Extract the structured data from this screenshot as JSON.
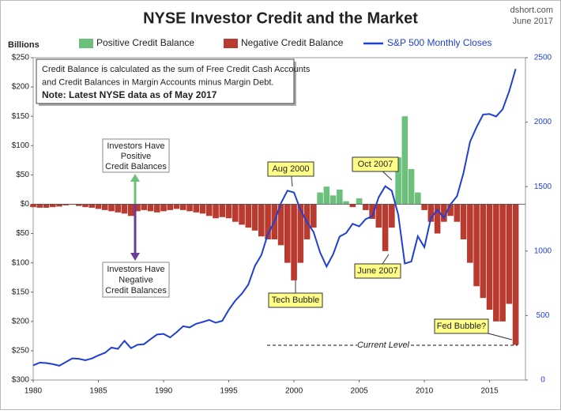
{
  "chart_data": {
    "type": "bar",
    "title": "NYSE Investor Credit and the Market",
    "source": [
      "dshort.com",
      "June 2017"
    ],
    "ylabel": "Billions",
    "xlim": [
      1980,
      2017.75
    ],
    "xticks": [
      1980,
      1985,
      1990,
      1995,
      2000,
      2005,
      2010,
      2015
    ],
    "ylim": [
      -300,
      250
    ],
    "yticks": [
      {
        "value": -300,
        "label": "$300"
      },
      {
        "value": -250,
        "label": "$250"
      },
      {
        "value": -200,
        "label": "$200"
      },
      {
        "value": -150,
        "label": "$150"
      },
      {
        "value": -100,
        "label": "$100"
      },
      {
        "value": -50,
        "label": "$50"
      },
      {
        "value": 0,
        "label": "$0"
      },
      {
        "value": 50,
        "label": "$50"
      },
      {
        "value": 100,
        "label": "$100"
      },
      {
        "value": 150,
        "label": "$150"
      },
      {
        "value": 200,
        "label": "$200"
      },
      {
        "value": 250,
        "label": "$250"
      }
    ],
    "y2lim": [
      0,
      2500
    ],
    "y2ticks": [
      0,
      500,
      1000,
      1500,
      2000,
      2500
    ],
    "x": [
      1980,
      1980.5,
      1981,
      1981.5,
      1982,
      1982.5,
      1983,
      1983.5,
      1984,
      1984.5,
      1985,
      1985.5,
      1986,
      1986.5,
      1987,
      1987.5,
      1988,
      1988.5,
      1989,
      1989.5,
      1990,
      1990.5,
      1991,
      1991.5,
      1992,
      1992.5,
      1993,
      1993.5,
      1994,
      1994.5,
      1995,
      1995.5,
      1996,
      1996.5,
      1997,
      1997.5,
      1998,
      1998.5,
      1999,
      1999.5,
      2000,
      2000.5,
      2001,
      2001.5,
      2002,
      2002.5,
      2003,
      2003.5,
      2004,
      2004.5,
      2005,
      2005.5,
      2006,
      2006.5,
      2007,
      2007.5,
      2008,
      2008.5,
      2009,
      2009.5,
      2010,
      2010.5,
      2011,
      2011.5,
      2012,
      2012.5,
      2013,
      2013.5,
      2014,
      2014.5,
      2015,
      2015.5,
      2016,
      2016.5,
      2017
    ],
    "series": [
      {
        "name": "Positive Credit Balance",
        "color": "#6cc07c",
        "values": [
          null,
          null,
          null,
          null,
          null,
          null,
          null,
          null,
          null,
          null,
          null,
          null,
          null,
          null,
          null,
          null,
          null,
          null,
          null,
          null,
          null,
          null,
          null,
          null,
          null,
          null,
          null,
          null,
          null,
          null,
          null,
          null,
          null,
          null,
          null,
          null,
          null,
          null,
          null,
          null,
          null,
          null,
          null,
          null,
          20,
          30,
          15,
          25,
          5,
          null,
          10,
          null,
          null,
          null,
          null,
          null,
          80,
          150,
          60,
          20,
          null,
          null,
          null,
          null,
          null,
          null,
          null,
          null,
          null,
          null,
          null,
          null,
          null,
          null,
          null
        ]
      },
      {
        "name": "Negative Credit Balance",
        "color": "#b93a2e",
        "values": [
          -5,
          -6,
          -6,
          -5,
          -4,
          -2,
          -1,
          -3,
          -5,
          -6,
          -8,
          -10,
          -12,
          -14,
          -16,
          -20,
          -12,
          -10,
          -12,
          -14,
          -12,
          -10,
          -8,
          -10,
          -12,
          -14,
          -16,
          -20,
          -24,
          -22,
          -24,
          -30,
          -35,
          -40,
          -45,
          -55,
          -60,
          -60,
          -70,
          -100,
          -130,
          -100,
          -60,
          -40,
          null,
          null,
          null,
          null,
          null,
          -5,
          null,
          -10,
          -25,
          -40,
          -80,
          -40,
          null,
          null,
          null,
          null,
          -10,
          -30,
          -50,
          -30,
          -20,
          -30,
          -60,
          -100,
          -140,
          -160,
          -180,
          -200,
          -200,
          -170,
          -240
        ]
      },
      {
        "name": "S&P 500 Monthly Closes",
        "color": "#1f3fd6",
        "type": "line",
        "axis": "y2",
        "values": [
          114,
          135,
          132,
          123,
          111,
          140,
          168,
          165,
          153,
          167,
          191,
          211,
          251,
          242,
          304,
          247,
          273,
          278,
          317,
          353,
          358,
          330,
          371,
          417,
          408,
          436,
          450,
          466,
          444,
          459,
          544,
          616,
          670,
          741,
          885,
          970,
          1133,
          1229,
          1372,
          1469,
          1454,
          1320,
          1224,
          1148,
          990,
          880,
          975,
          1112,
          1140,
          1212,
          1191,
          1248,
          1270,
          1418,
          1503,
          1468,
          1280,
          903,
          919,
          1115,
          1030,
          1258,
          1320,
          1258,
          1362,
          1426,
          1606,
          1848,
          1960,
          2059,
          2063,
          2044,
          2099,
          2239,
          2412
        ]
      }
    ],
    "note_lines": [
      "Credit Balance is calculated as the sum of Free Credit Cash Accounts",
      "and Credit Balances in Margin Accounts minus Margin Debt.",
      "Note: Latest NYSE data as of May 2017"
    ],
    "positive_note": [
      "Investors Have",
      "Positive",
      "Credit Balances"
    ],
    "negative_note": [
      "Investors Have",
      "Negative",
      "Credit Balances"
    ],
    "callouts": [
      "Aug 2000",
      "Oct 2007",
      "June 2007",
      "Tech Bubble",
      "Fed Bubble?"
    ],
    "current_level": "Current Level"
  }
}
